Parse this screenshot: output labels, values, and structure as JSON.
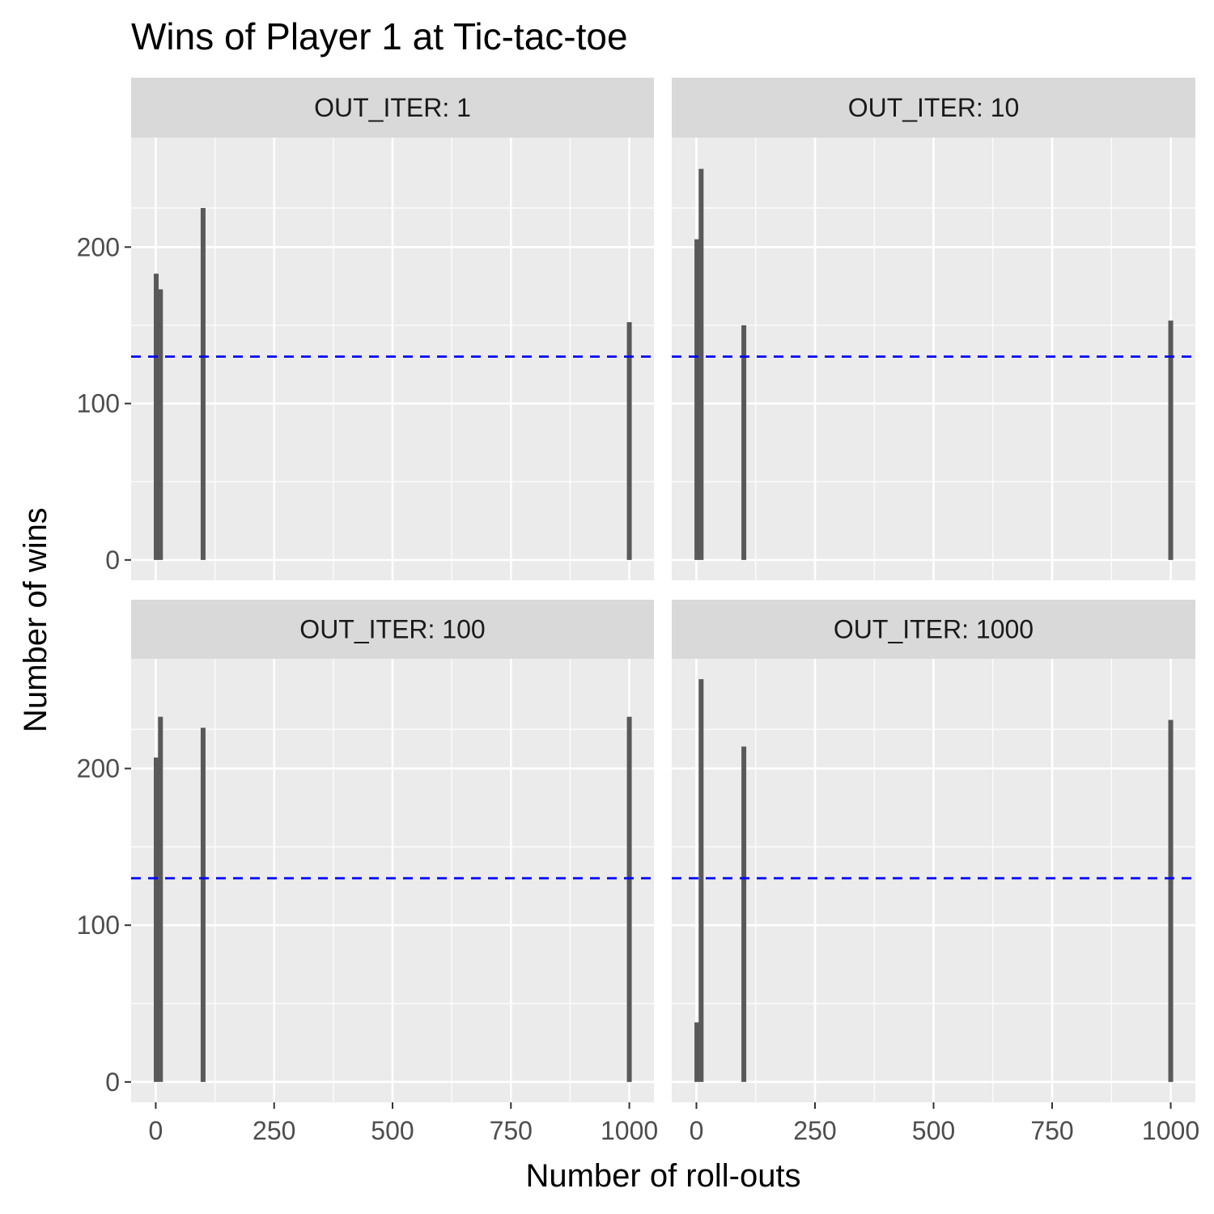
{
  "chart_data": {
    "type": "bar",
    "title": "Wins of Player 1 at Tic-tac-toe",
    "xlabel": "Number of roll-outs",
    "ylabel": "Number of wins",
    "x_ticks": [
      0,
      250,
      500,
      750,
      1000
    ],
    "x_tick_labels": [
      "0",
      "250",
      "500",
      "750",
      "1000"
    ],
    "y_ticks": [
      0,
      100,
      200
    ],
    "y_tick_labels": [
      "0",
      "100",
      "200"
    ],
    "xlim": [
      -52,
      1052
    ],
    "ylim": [
      -13,
      270
    ],
    "grid": true,
    "reference_line": {
      "y": 130,
      "style": "dashed",
      "color": "#0000ff"
    },
    "colors": {
      "bar": "#595959",
      "panel_bg": "#ebebeb",
      "strip_bg": "#d9d9d9",
      "grid": "#ffffff"
    },
    "panels": [
      {
        "strip": "OUT_ITER: 1",
        "x": [
          1,
          10,
          100,
          1000
        ],
        "values": [
          183,
          173,
          225,
          152
        ]
      },
      {
        "strip": "OUT_ITER: 10",
        "x": [
          1,
          10,
          100,
          1000
        ],
        "values": [
          205,
          250,
          150,
          153
        ]
      },
      {
        "strip": "OUT_ITER: 100",
        "x": [
          1,
          10,
          100,
          1000
        ],
        "values": [
          207,
          233,
          226,
          233
        ]
      },
      {
        "strip": "OUT_ITER: 1000",
        "x": [
          1,
          10,
          100,
          1000
        ],
        "values": [
          38,
          257,
          214,
          231
        ]
      }
    ]
  }
}
